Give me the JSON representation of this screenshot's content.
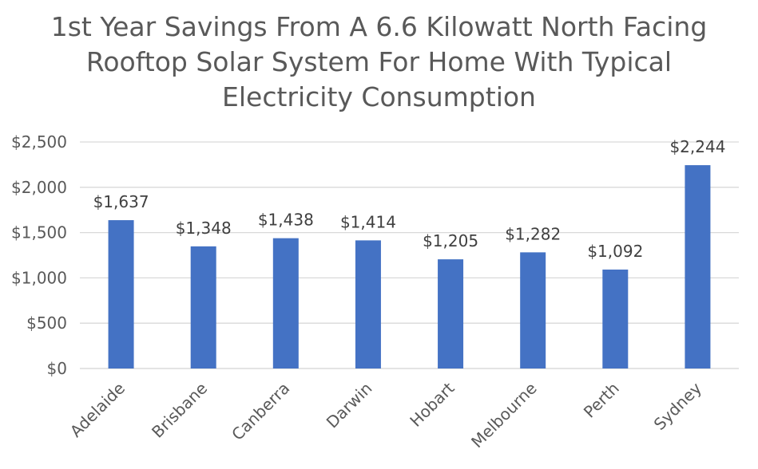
{
  "chart_data": {
    "type": "bar",
    "title_lines": [
      "1st Year Savings From A 6.6 Kilowatt North Facing",
      "Rooftop Solar System For Home With Typical",
      "Electricity Consumption"
    ],
    "categories": [
      "Adelaide",
      "Brisbane",
      "Canberra",
      "Darwin",
      "Hobart",
      "Melbourne",
      "Perth",
      "Sydney"
    ],
    "values": [
      1637,
      1348,
      1438,
      1414,
      1205,
      1282,
      1092,
      2244
    ],
    "data_labels": [
      "$1,637",
      "$1,348",
      "$1,438",
      "$1,414",
      "$1,205",
      "$1,282",
      "$1,092",
      "$2,244"
    ],
    "ylim": [
      0,
      2500
    ],
    "yticks": [
      0,
      500,
      1000,
      1500,
      2000,
      2500
    ],
    "ytick_labels": [
      "$0",
      "$500",
      "$1,000",
      "$1,500",
      "$2,000",
      "$2,500"
    ],
    "xlabel": "",
    "ylabel": "",
    "grid": true,
    "legend": "none",
    "bar_color": "#4472C4",
    "grid_color": "#D9D9D9"
  }
}
